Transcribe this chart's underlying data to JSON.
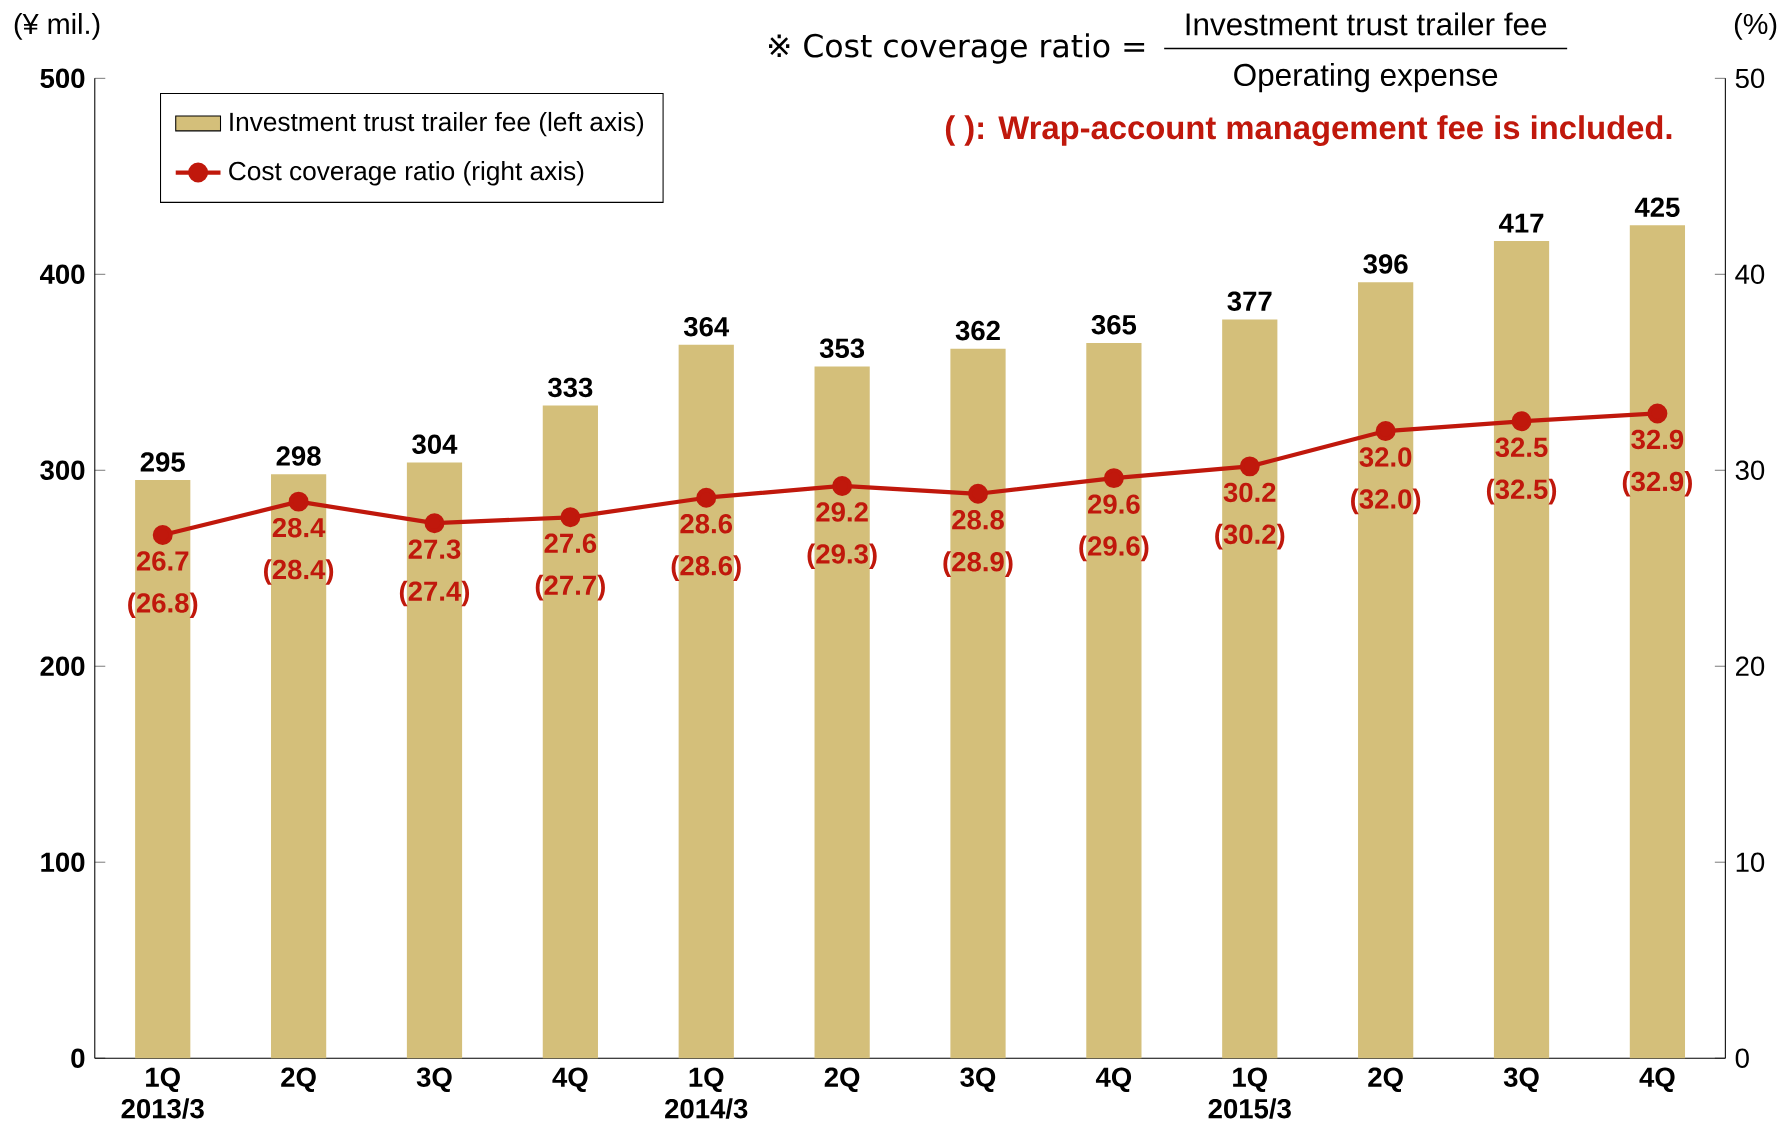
{
  "chart_data": {
    "type": "bar",
    "ylabel": "(¥ mil.)",
    "y2label": "(%)",
    "categories": [
      "1Q 2013/3",
      "2Q",
      "3Q",
      "4Q",
      "1Q 2014/3",
      "2Q",
      "3Q",
      "4Q",
      "1Q 2015/3",
      "2Q",
      "3Q",
      "4Q"
    ],
    "series": [
      {
        "name": "Investment trust trailer fee (left axis)",
        "color": "#d4bf7a",
        "values": [
          295,
          298,
          304,
          333,
          364,
          353,
          362,
          365,
          377,
          396,
          417,
          425
        ]
      },
      {
        "name": "Cost coverage ratio (right axis)",
        "type": "line",
        "axis": "y2",
        "color": "#c0180c",
        "marker": "circle",
        "values": [
          26.7,
          28.4,
          27.3,
          27.6,
          28.6,
          29.2,
          28.8,
          29.6,
          30.2,
          32.0,
          32.5,
          32.9
        ],
        "value_labels": [
          "26.7 (26.8)",
          "28.4 (28.4)",
          "27.3 (27.4)",
          "27.6 (27.7)",
          "28.6 (28.6)",
          "29.2 (29.3)",
          "28.8 (28.9)",
          "29.6 (29.6)",
          "30.2 (30.2)",
          "32.0 (32.0)",
          "32.5 (32.5)",
          "32.9 (32.9)"
        ]
      }
    ],
    "data_labels": true,
    "ylim": [
      0,
      500
    ],
    "yticks": [
      0,
      100,
      200,
      300,
      400,
      500
    ],
    "y2lim": [
      0,
      50
    ],
    "y2ticks": [
      0,
      10,
      20,
      30,
      40,
      50
    ],
    "legend": "top left",
    "grid": false,
    "annotations": [
      "※ Cost coverage ratio =",
      "Investment trust trailer fee",
      "Operating expense",
      "(     ): Wrap-account management fee is included."
    ]
  }
}
